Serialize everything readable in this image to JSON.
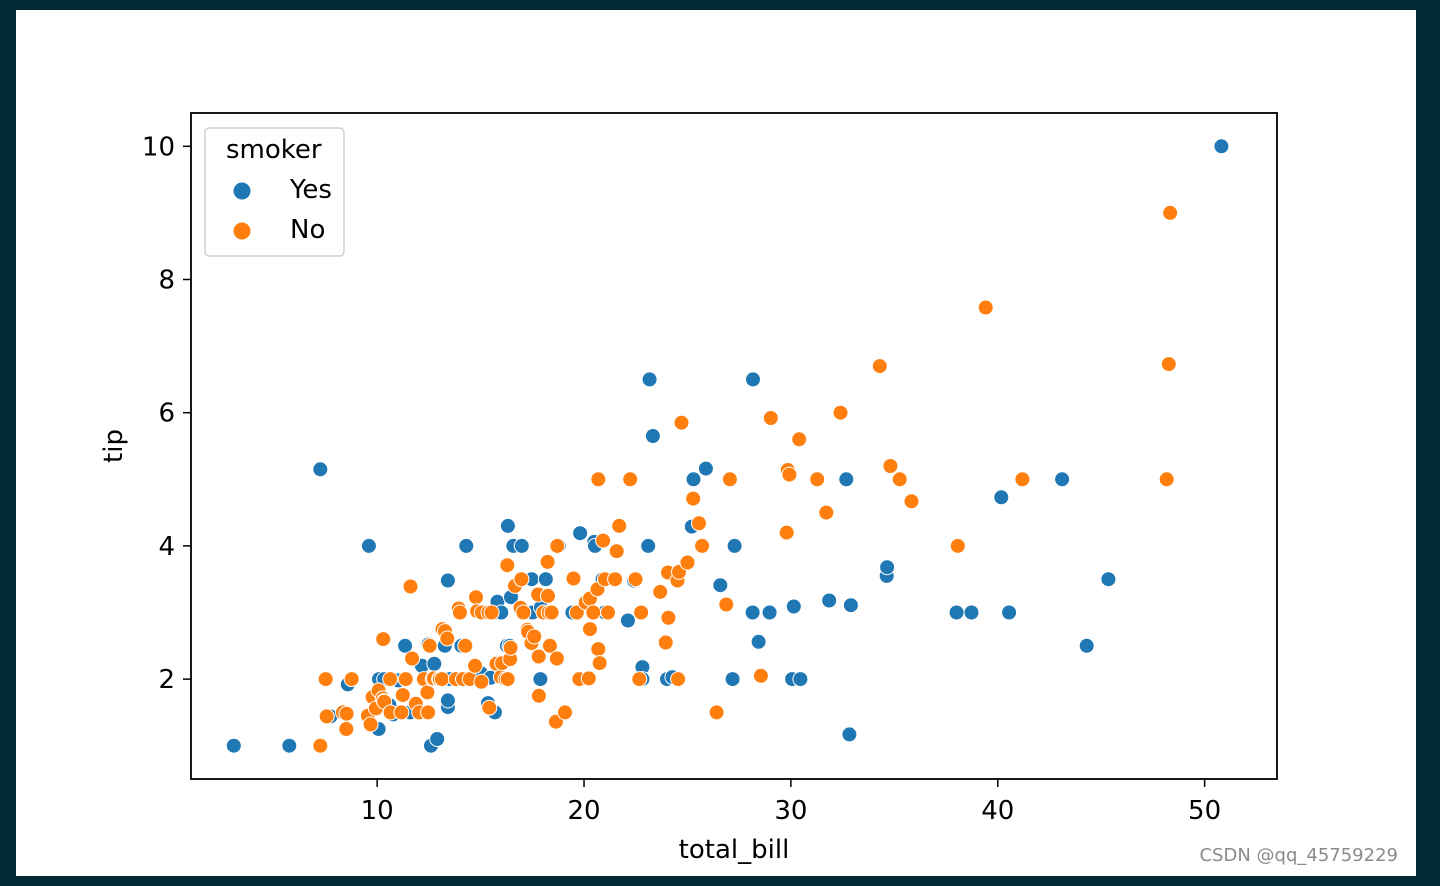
{
  "watermark": "CSDN @qq_45759229",
  "colors": {
    "Yes": "#1f77b4",
    "No": "#ff7f0e"
  },
  "chart_data": {
    "type": "scatter",
    "xlabel": "total_bill",
    "ylabel": "tip",
    "xlim": [
      1.0,
      53.5
    ],
    "ylim": [
      0.5,
      10.5
    ],
    "xticks": [
      10,
      20,
      30,
      40,
      50
    ],
    "yticks": [
      2,
      4,
      6,
      8,
      10
    ],
    "grid": false,
    "legend": {
      "title": "smoker",
      "placement": "top-left",
      "entries": [
        "Yes",
        "No"
      ]
    },
    "series": [
      {
        "name": "Yes",
        "points": [
          [
            3.07,
            1.0
          ],
          [
            5.75,
            1.0
          ],
          [
            7.25,
            5.15
          ],
          [
            7.74,
            1.44
          ],
          [
            8.58,
            1.92
          ],
          [
            9.6,
            4.0
          ],
          [
            10.07,
            1.25
          ],
          [
            10.09,
            2.0
          ],
          [
            10.34,
            2.0
          ],
          [
            10.59,
            1.61
          ],
          [
            10.77,
            1.47
          ],
          [
            11.02,
            1.98
          ],
          [
            11.35,
            2.5
          ],
          [
            11.59,
            1.5
          ],
          [
            12.16,
            2.2
          ],
          [
            12.48,
            2.52
          ],
          [
            12.6,
            1.0
          ],
          [
            12.76,
            2.23
          ],
          [
            12.9,
            1.1
          ],
          [
            12.9,
            2.0
          ],
          [
            13.0,
            2.0
          ],
          [
            13.27,
            2.5
          ],
          [
            13.42,
            1.58
          ],
          [
            13.42,
            3.48
          ],
          [
            13.42,
            1.68
          ],
          [
            13.51,
            2.0
          ],
          [
            14.07,
            2.5
          ],
          [
            14.31,
            4.0
          ],
          [
            14.52,
            2.0
          ],
          [
            15.01,
            2.09
          ],
          [
            15.36,
            1.64
          ],
          [
            15.48,
            2.02
          ],
          [
            15.69,
            3.0
          ],
          [
            15.69,
            1.5
          ],
          [
            15.81,
            3.16
          ],
          [
            16.0,
            3.0
          ],
          [
            16.27,
            2.5
          ],
          [
            16.32,
            4.3
          ],
          [
            16.4,
            2.5
          ],
          [
            16.47,
            3.23
          ],
          [
            16.58,
            4.0
          ],
          [
            16.99,
            4.0
          ],
          [
            17.47,
            3.5
          ],
          [
            17.51,
            3.0
          ],
          [
            17.89,
            2.0
          ],
          [
            17.92,
            3.08
          ],
          [
            18.15,
            3.5
          ],
          [
            18.78,
            4.0
          ],
          [
            19.44,
            3.0
          ],
          [
            19.81,
            4.19
          ],
          [
            20.27,
            3.2
          ],
          [
            20.49,
            4.06
          ],
          [
            20.53,
            4.0
          ],
          [
            20.9,
            3.5
          ],
          [
            21.01,
            3.0
          ],
          [
            22.12,
            2.88
          ],
          [
            22.42,
            3.48
          ],
          [
            22.82,
            2.18
          ],
          [
            22.82,
            2.0
          ],
          [
            23.1,
            4.0
          ],
          [
            23.17,
            6.5
          ],
          [
            23.33,
            5.65
          ],
          [
            24.01,
            2.0
          ],
          [
            24.27,
            2.03
          ],
          [
            25.21,
            4.29
          ],
          [
            25.29,
            5.0
          ],
          [
            25.89,
            5.16
          ],
          [
            26.59,
            3.41
          ],
          [
            26.88,
            3.12
          ],
          [
            27.28,
            4.0
          ],
          [
            27.18,
            2.0
          ],
          [
            28.15,
            3.0
          ],
          [
            28.17,
            6.5
          ],
          [
            28.44,
            2.56
          ],
          [
            28.97,
            3.0
          ],
          [
            30.06,
            2.0
          ],
          [
            30.14,
            3.09
          ],
          [
            30.46,
            2.0
          ],
          [
            31.85,
            3.18
          ],
          [
            32.68,
            5.0
          ],
          [
            32.83,
            1.17
          ],
          [
            32.9,
            3.11
          ],
          [
            34.63,
            3.55
          ],
          [
            34.65,
            3.68
          ],
          [
            38.01,
            3.0
          ],
          [
            38.73,
            3.0
          ],
          [
            40.17,
            4.73
          ],
          [
            40.55,
            3.0
          ],
          [
            43.11,
            5.0
          ],
          [
            44.3,
            2.5
          ],
          [
            45.35,
            3.5
          ],
          [
            50.81,
            10.0
          ]
        ]
      },
      {
        "name": "No",
        "points": [
          [
            7.25,
            1.0
          ],
          [
            7.51,
            2.0
          ],
          [
            7.56,
            1.44
          ],
          [
            8.35,
            1.5
          ],
          [
            8.51,
            1.25
          ],
          [
            8.52,
            1.48
          ],
          [
            8.77,
            2.0
          ],
          [
            9.55,
            1.45
          ],
          [
            9.68,
            1.32
          ],
          [
            9.78,
            1.73
          ],
          [
            9.94,
            1.56
          ],
          [
            10.07,
            1.83
          ],
          [
            10.27,
            1.71
          ],
          [
            10.29,
            2.6
          ],
          [
            10.33,
            1.67
          ],
          [
            10.34,
            1.66
          ],
          [
            10.63,
            2.0
          ],
          [
            10.65,
            1.5
          ],
          [
            11.17,
            1.5
          ],
          [
            11.24,
            1.76
          ],
          [
            11.38,
            2.0
          ],
          [
            11.61,
            3.39
          ],
          [
            11.69,
            2.31
          ],
          [
            11.87,
            1.63
          ],
          [
            12.03,
            1.5
          ],
          [
            12.26,
            2.0
          ],
          [
            12.43,
            1.8
          ],
          [
            12.54,
            2.5
          ],
          [
            12.46,
            1.5
          ],
          [
            12.69,
            2.0
          ],
          [
            12.74,
            2.01
          ],
          [
            13.0,
            2.0
          ],
          [
            13.03,
            2.0
          ],
          [
            13.13,
            2.0
          ],
          [
            13.16,
            2.75
          ],
          [
            13.28,
            2.72
          ],
          [
            13.39,
            2.61
          ],
          [
            13.81,
            2.0
          ],
          [
            13.94,
            3.06
          ],
          [
            14.0,
            3.0
          ],
          [
            14.15,
            2.0
          ],
          [
            14.26,
            2.5
          ],
          [
            14.48,
            2.0
          ],
          [
            14.73,
            2.2
          ],
          [
            14.78,
            3.23
          ],
          [
            14.83,
            3.02
          ],
          [
            15.04,
            1.96
          ],
          [
            15.06,
            3.0
          ],
          [
            15.38,
            3.0
          ],
          [
            15.42,
            1.57
          ],
          [
            15.53,
            3.0
          ],
          [
            15.77,
            2.23
          ],
          [
            15.98,
            2.03
          ],
          [
            16.04,
            2.24
          ],
          [
            16.21,
            2.0
          ],
          [
            16.29,
            3.71
          ],
          [
            16.31,
            2.0
          ],
          [
            16.43,
            2.3
          ],
          [
            16.45,
            2.47
          ],
          [
            16.66,
            3.4
          ],
          [
            16.93,
            3.07
          ],
          [
            16.97,
            3.5
          ],
          [
            17.07,
            3.0
          ],
          [
            17.26,
            2.74
          ],
          [
            17.29,
            2.71
          ],
          [
            17.46,
            2.54
          ],
          [
            17.59,
            2.64
          ],
          [
            17.78,
            3.27
          ],
          [
            17.81,
            2.34
          ],
          [
            17.82,
            1.75
          ],
          [
            18.04,
            3.0
          ],
          [
            18.24,
            3.76
          ],
          [
            18.26,
            3.25
          ],
          [
            18.29,
            3.0
          ],
          [
            18.35,
            2.5
          ],
          [
            18.43,
            3.0
          ],
          [
            18.64,
            1.36
          ],
          [
            18.69,
            2.31
          ],
          [
            18.71,
            4.0
          ],
          [
            19.08,
            1.5
          ],
          [
            19.49,
            3.51
          ],
          [
            19.65,
            3.0
          ],
          [
            19.77,
            2.0
          ],
          [
            20.08,
            3.15
          ],
          [
            20.23,
            2.01
          ],
          [
            20.29,
            2.75
          ],
          [
            20.29,
            3.21
          ],
          [
            20.45,
            3.0
          ],
          [
            20.65,
            3.35
          ],
          [
            20.69,
            2.45
          ],
          [
            20.69,
            5.0
          ],
          [
            20.76,
            2.24
          ],
          [
            20.92,
            4.08
          ],
          [
            21.01,
            3.5
          ],
          [
            21.16,
            3.0
          ],
          [
            21.5,
            3.5
          ],
          [
            21.58,
            3.92
          ],
          [
            21.7,
            4.3
          ],
          [
            22.23,
            5.0
          ],
          [
            22.49,
            3.5
          ],
          [
            22.67,
            2.0
          ],
          [
            22.76,
            3.0
          ],
          [
            23.68,
            3.31
          ],
          [
            23.95,
            2.55
          ],
          [
            24.06,
            3.6
          ],
          [
            24.08,
            2.92
          ],
          [
            24.52,
            3.48
          ],
          [
            24.55,
            2.0
          ],
          [
            24.59,
            3.61
          ],
          [
            24.71,
            5.85
          ],
          [
            25.0,
            3.75
          ],
          [
            25.28,
            4.71
          ],
          [
            25.56,
            4.34
          ],
          [
            25.71,
            4.0
          ],
          [
            26.41,
            1.5
          ],
          [
            26.88,
            3.12
          ],
          [
            27.05,
            5.0
          ],
          [
            28.55,
            2.05
          ],
          [
            29.03,
            5.92
          ],
          [
            29.8,
            4.2
          ],
          [
            29.85,
            5.14
          ],
          [
            29.93,
            5.07
          ],
          [
            30.4,
            5.6
          ],
          [
            31.27,
            5.0
          ],
          [
            31.71,
            4.5
          ],
          [
            32.4,
            6.0
          ],
          [
            34.3,
            6.7
          ],
          [
            34.81,
            5.2
          ],
          [
            35.26,
            5.0
          ],
          [
            35.83,
            4.67
          ],
          [
            39.42,
            7.58
          ],
          [
            38.07,
            4.0
          ],
          [
            41.19,
            5.0
          ],
          [
            48.17,
            5.0
          ],
          [
            48.27,
            6.73
          ],
          [
            48.33,
            9.0
          ]
        ]
      }
    ]
  }
}
